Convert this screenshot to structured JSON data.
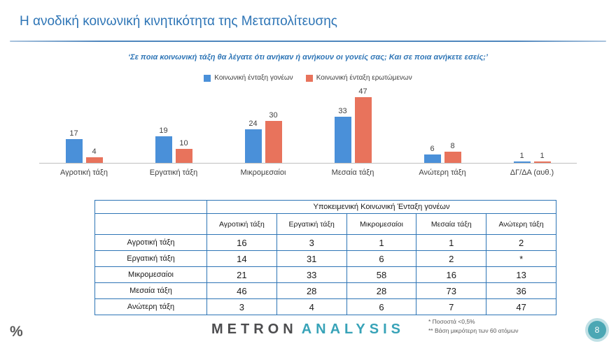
{
  "header": {
    "title": "Η ανοδική κοινωνική κινητικότητα της Μεταπολίτευσης",
    "question": "‘Σε ποια κοινωνική τάξη θα λέγατε ότι ανήκαν ή ανήκουν οι γονείς σας; Και σε ποια ανήκετε εσείς;’"
  },
  "chart_data": {
    "type": "bar",
    "categories": [
      "Αγροτική τάξη",
      "Εργατική τάξη",
      "Μικρομεσαίοι",
      "Μεσαία τάξη",
      "Ανώτερη τάξη",
      "ΔΓ/ΔΑ (αυθ.)"
    ],
    "series": [
      {
        "name": "Κοινωνική ένταξη γονέων",
        "color": "#4A90D9",
        "values": [
          17,
          19,
          24,
          33,
          6,
          1
        ]
      },
      {
        "name": "Κοινωνική ένταξη ερωτώμενων",
        "color": "#E8735C",
        "values": [
          4,
          10,
          30,
          47,
          8,
          1
        ]
      }
    ],
    "ylim": [
      0,
      50
    ],
    "value_labels": true,
    "legend_position": "top",
    "grid": false
  },
  "table": {
    "title": "Υποκειμενική Κοινωνική Ένταξη γονέων",
    "columns": [
      "Αγροτική τάξη",
      "Εργατική τάξη",
      "Μικρομεσαίοι",
      "Μεσαία τάξη",
      "Ανώτερη τάξη"
    ],
    "rows": [
      {
        "label": "Αγροτική τάξη",
        "values": [
          "16",
          "3",
          "1",
          "1",
          "2"
        ]
      },
      {
        "label": "Εργατική τάξη",
        "values": [
          "14",
          "31",
          "6",
          "2",
          "*"
        ]
      },
      {
        "label": "Μικρομεσαίοι",
        "values": [
          "21",
          "33",
          "58",
          "16",
          "13"
        ]
      },
      {
        "label": "Μεσαία τάξη",
        "values": [
          "46",
          "28",
          "28",
          "73",
          "36"
        ]
      },
      {
        "label": "Ανώτερη τάξη",
        "values": [
          "3",
          "4",
          "6",
          "7",
          "47"
        ]
      }
    ]
  },
  "footer": {
    "percent_symbol": "%",
    "logo": {
      "part1": "METRON",
      "part2": "ANALYSIS"
    },
    "footnotes": [
      "*  Ποσοστά <0,5%",
      "**  Βάση μικρότερη των 60 ατόμων"
    ],
    "page_number": "8"
  }
}
